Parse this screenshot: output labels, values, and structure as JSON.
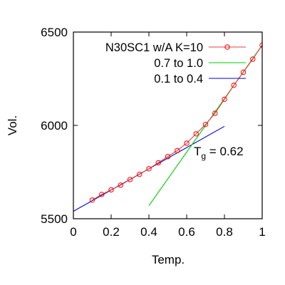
{
  "chart_data": {
    "type": "line",
    "xlabel": "Temp.",
    "ylabel": "Vol.",
    "xlim": [
      0,
      1
    ],
    "ylim": [
      5500,
      6500
    ],
    "x_ticks": [
      "0",
      "0.2",
      "0.4",
      "0.6",
      "0.8",
      "1"
    ],
    "y_ticks": [
      "5500",
      "6000",
      "6500"
    ],
    "legend_position": "top-right",
    "series": [
      {
        "name": "N30SC1 w/A K=10",
        "style": "line-with-circle-markers",
        "color": "#ff0000",
        "line_color": "#e04040",
        "x": [
          0.1,
          0.15,
          0.2,
          0.25,
          0.3,
          0.35,
          0.4,
          0.45,
          0.5,
          0.55,
          0.6,
          0.65,
          0.7,
          0.75,
          0.8,
          0.85,
          0.9,
          0.95,
          1.0
        ],
        "y": [
          5600,
          5630,
          5655,
          5680,
          5710,
          5738,
          5768,
          5800,
          5833,
          5865,
          5905,
          5955,
          6005,
          6065,
          6140,
          6215,
          6285,
          6355,
          6430
        ]
      },
      {
        "name": "0.7 to 1.0",
        "style": "line",
        "color": "#00cc00",
        "x": [
          0.4,
          1.0
        ],
        "y": [
          5570,
          6430
        ]
      },
      {
        "name": "0.1 to 0.4",
        "style": "line",
        "color": "#0000cc",
        "x": [
          0.0,
          0.8
        ],
        "y": [
          5540,
          5995
        ]
      }
    ],
    "annotation": {
      "symbol": "T",
      "subscript": "g",
      "text": " = 0.62",
      "x": 0.62,
      "y": 5875
    }
  }
}
